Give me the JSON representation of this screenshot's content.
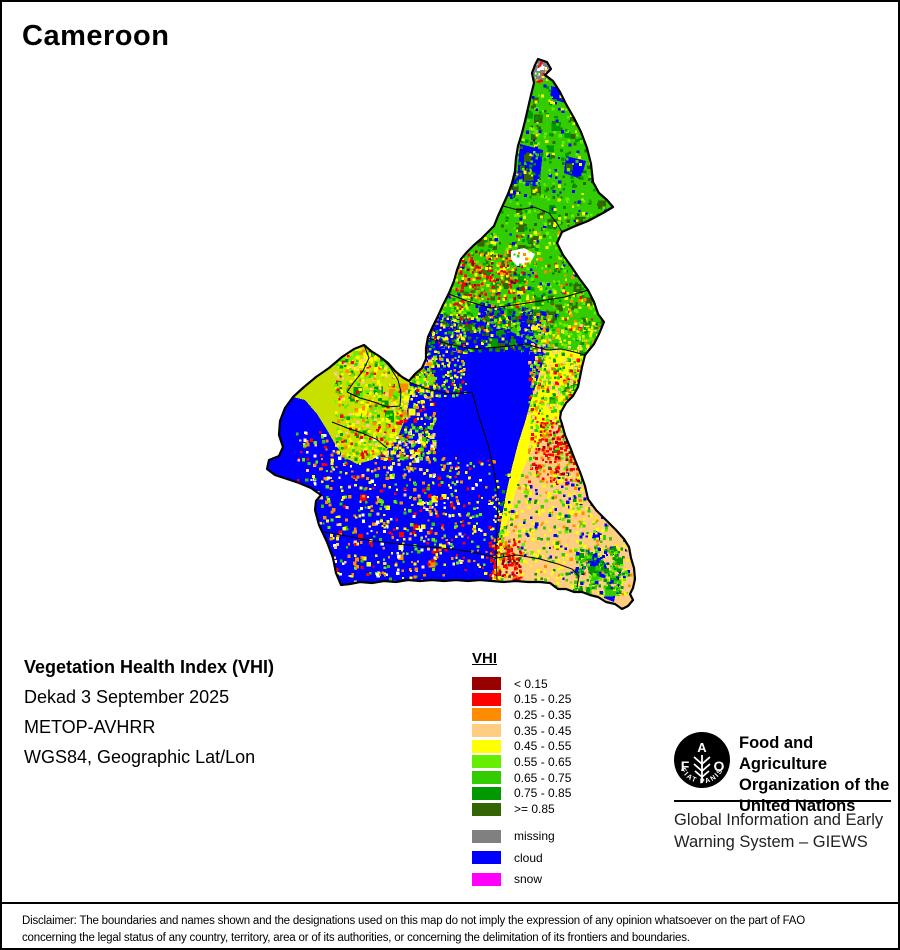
{
  "title": "Cameroon",
  "info": {
    "line1": "Vegetation Health Index (VHI)",
    "line2": "Dekad 3 September 2025",
    "line3": "METOP-AVHRR",
    "line4": "WGS84, Geographic Lat/Lon"
  },
  "legend": {
    "heading": "VHI",
    "classes": [
      {
        "label": "< 0.15",
        "color": "#990000"
      },
      {
        "label": "0.15 - 0.25",
        "color": "#FF0000"
      },
      {
        "label": "0.25 - 0.35",
        "color": "#FF8C00"
      },
      {
        "label": "0.35 - 0.45",
        "color": "#FFCC80"
      },
      {
        "label": "0.45 - 0.55",
        "color": "#FFFF00"
      },
      {
        "label": "0.55 - 0.65",
        "color": "#66EE00"
      },
      {
        "label": "0.65 - 0.75",
        "color": "#33CC00"
      },
      {
        "label": "0.75 - 0.85",
        "color": "#009900"
      },
      {
        "label": ">= 0.85",
        "color": "#336600"
      }
    ],
    "extras": [
      {
        "label": "missing",
        "color": "#808080"
      },
      {
        "label": "cloud",
        "color": "#0000FF"
      },
      {
        "label": "snow",
        "color": "#FF00FF"
      }
    ]
  },
  "fao": {
    "letters": {
      "f": "F",
      "a": "A",
      "o": "O"
    },
    "motto": "FIAT PANIS",
    "org_line1": "Food and Agriculture",
    "org_line2": "Organization of the",
    "org_line3": "United Nations",
    "giews_line1": "Global Information and Early",
    "giews_line2": "Warning System – GIEWS"
  },
  "disclaimer": {
    "line1": "Disclaimer: The boundaries and names shown and the designations used on this map do not imply the expression of any opinion whatsoever on the part of FAO",
    "line2": "concerning the legal status of any country, territory, area or of its authorities, or concerning the delimitation of its frontiers and boundaries."
  }
}
